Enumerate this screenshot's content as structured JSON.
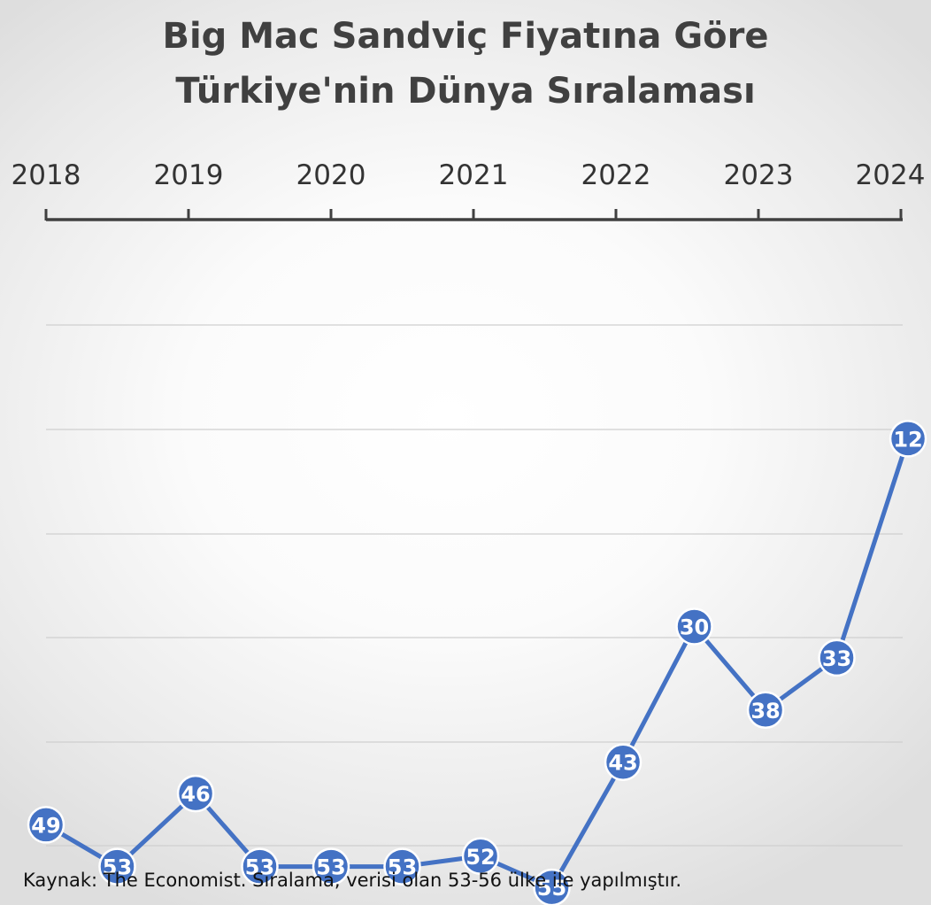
{
  "chart_data": {
    "type": "line",
    "title": "Big Mac Sandviç Fiyatına Göre",
    "subtitle": "Türkiye'nin Dünya Sıralaması",
    "x_axis": {
      "position": "top",
      "range": [
        2018,
        2024
      ],
      "tick_labels": [
        "2018",
        "2019",
        "2020",
        "2021",
        "2022",
        "2023",
        "2024"
      ]
    },
    "y_axis": {
      "reversed": true,
      "range": [
        60,
        0
      ],
      "tick_labels_shown": false
    },
    "grid": true,
    "x": [
      2018.0,
      2018.5,
      2019.05,
      2019.5,
      2020.0,
      2020.5,
      2021.05,
      2021.55,
      2022.05,
      2022.55,
      2023.05,
      2023.55,
      2024.05
    ],
    "series": [
      {
        "values": [
          49,
          53,
          46,
          53,
          53,
          53,
          52,
          55,
          43,
          30,
          38,
          33,
          12
        ],
        "color": "#4472c4"
      }
    ],
    "source_note": "Kaynak: The Economist. Sıralama, verisi olan 53-56 ülke ile yapılmıştır."
  }
}
